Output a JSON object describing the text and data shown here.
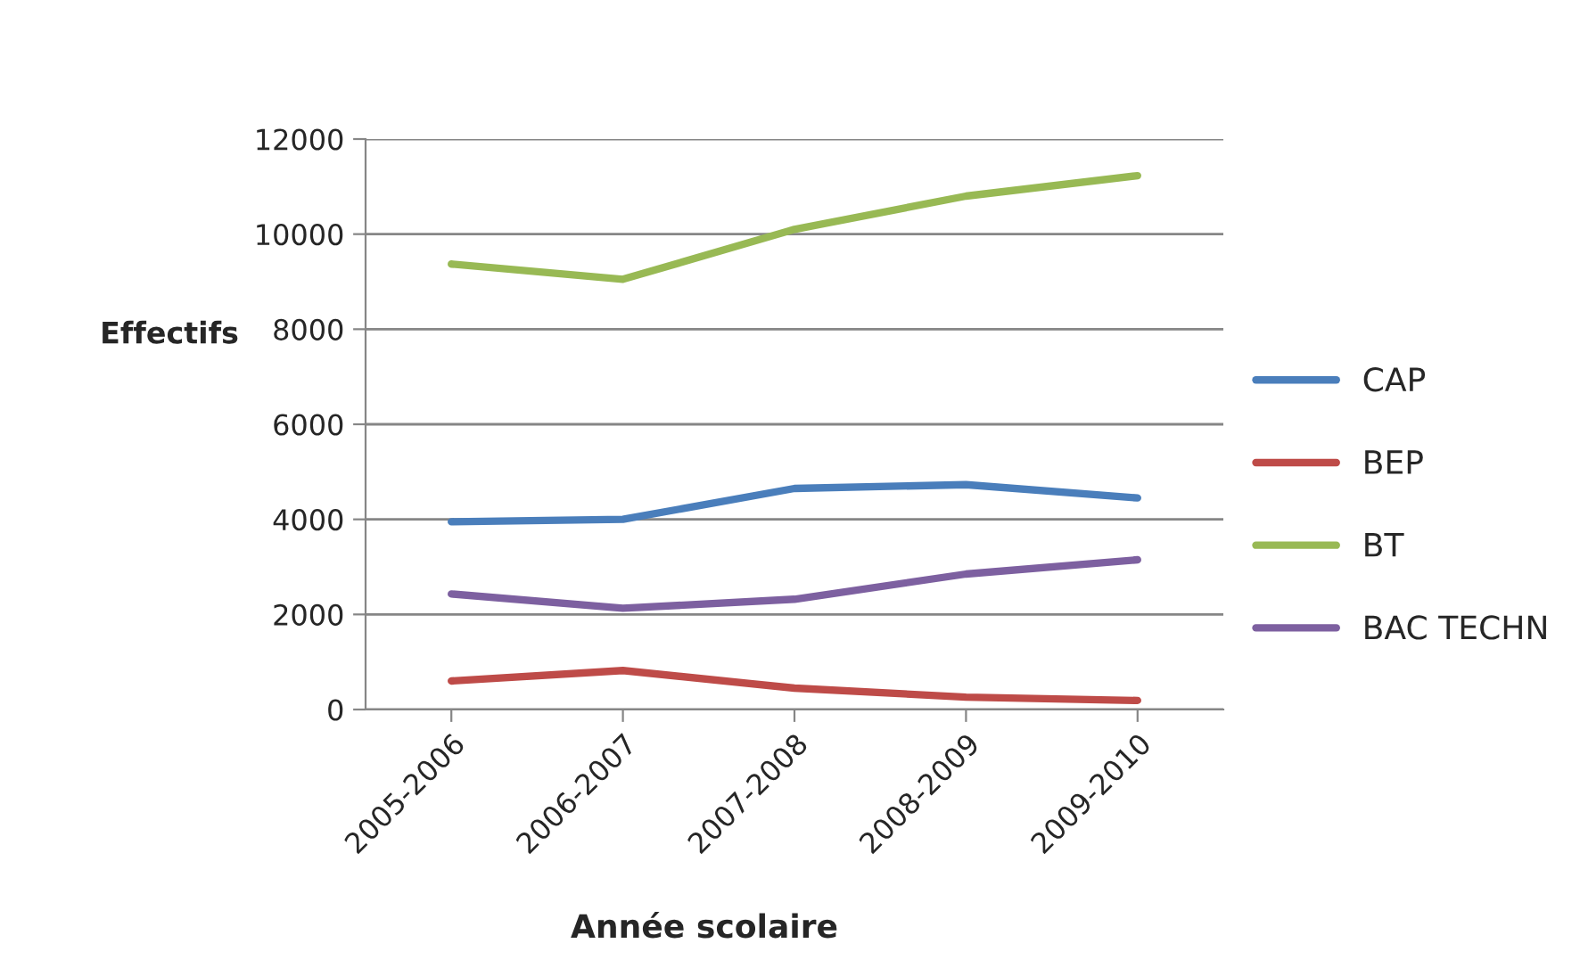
{
  "chart_data": {
    "type": "line",
    "xlabel": "Année scolaire",
    "ylabel": "Effectifs",
    "categories": [
      "2005-2006",
      "2006-2007",
      "2007-2008",
      "2008-2009",
      "2009-2010"
    ],
    "series": [
      {
        "name": "CAP",
        "color": "#4a7ebb",
        "values": [
          3950,
          4000,
          4650,
          4730,
          4450
        ]
      },
      {
        "name": "BEP",
        "color": "#be4b48",
        "values": [
          600,
          820,
          450,
          260,
          190
        ]
      },
      {
        "name": "BT",
        "color": "#98b954",
        "values": [
          9370,
          9050,
          10100,
          10800,
          11230
        ]
      },
      {
        "name": "BAC TECHN",
        "color": "#7d60a0",
        "values": [
          2430,
          2130,
          2320,
          2850,
          3150
        ]
      }
    ],
    "ylim": [
      0,
      12000
    ],
    "yticks": [
      0,
      2000,
      4000,
      6000,
      8000,
      10000,
      12000
    ],
    "grid": "y",
    "legend": "right",
    "marker": "none",
    "line_style": "solid"
  }
}
